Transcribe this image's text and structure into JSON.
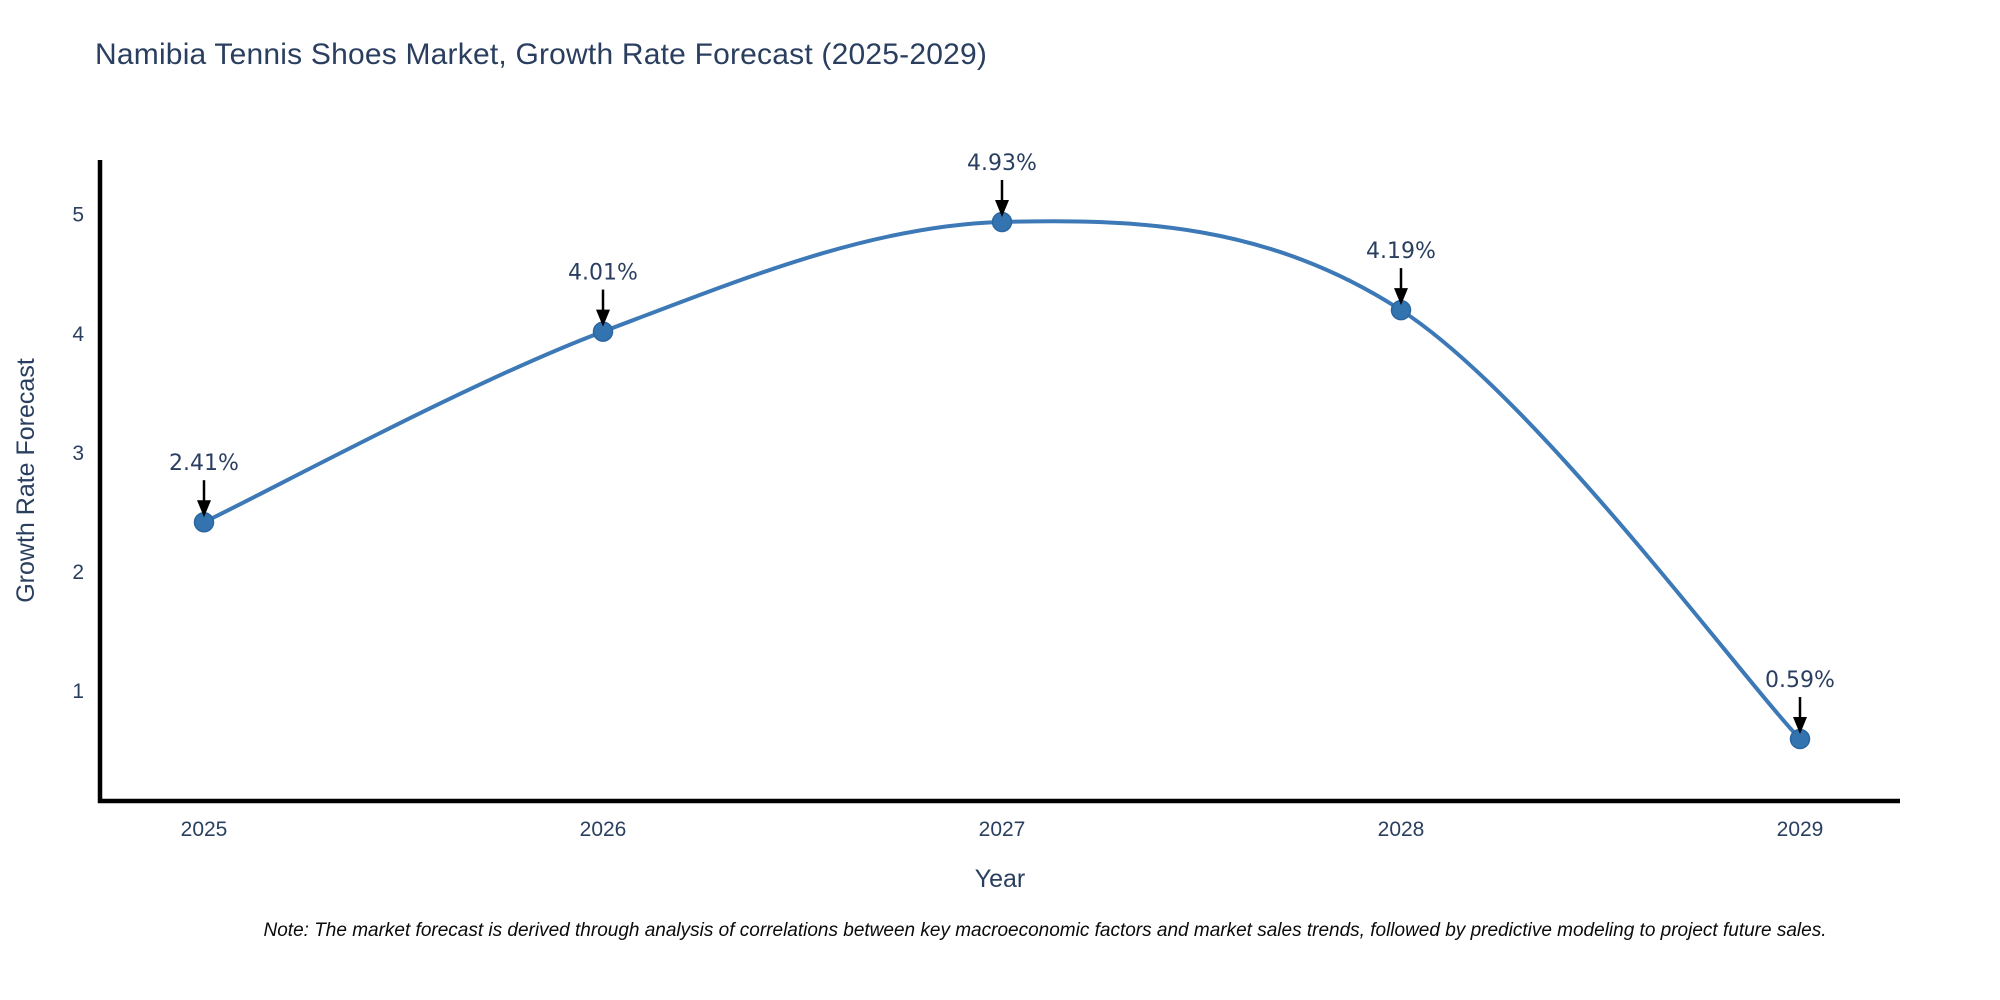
{
  "chart_data": {
    "type": "line",
    "title": "Namibia Tennis Shoes Market, Growth Rate Forecast (2025-2029)",
    "xlabel": "Year",
    "ylabel": "Growth Rate Forecast",
    "x": [
      2025,
      2026,
      2027,
      2028,
      2029
    ],
    "series": [
      {
        "name": "Growth Rate Forecast",
        "values": [
          2.41,
          4.01,
          4.93,
          4.19,
          0.59
        ]
      }
    ],
    "point_labels": [
      "2.41%",
      "4.01%",
      "4.93%",
      "4.19%",
      "0.59%"
    ],
    "yticks": [
      1,
      2,
      3,
      4,
      5
    ],
    "ylim": [
      0.07,
      5.45
    ],
    "grid": false,
    "legend": "none",
    "smooth": true,
    "colors": {
      "line": "#3c79b6",
      "marker": "#3373af",
      "marker_edge": "#2b66a0",
      "axis": "#000000",
      "text": "#2a3f5f",
      "annotation": "#2a3f5f",
      "arrow": "#000000"
    },
    "note": "Note: The market forecast is derived through analysis of correlations between key macroeconomic factors and market sales trends, followed by predictive modeling to project future sales."
  }
}
